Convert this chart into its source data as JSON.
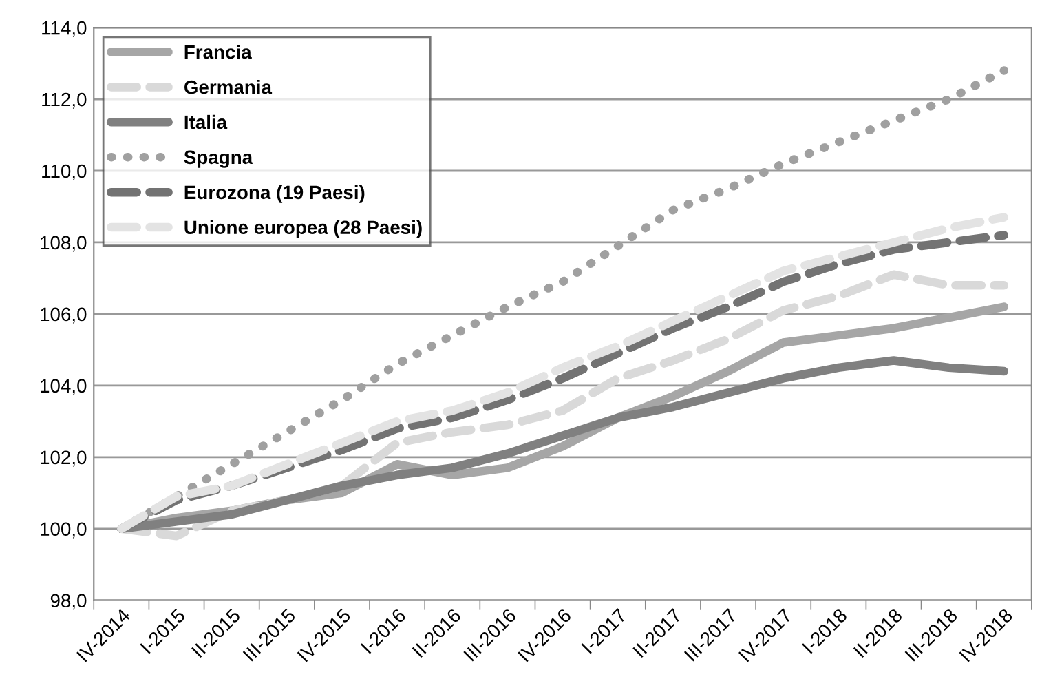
{
  "chart_data": {
    "type": "line",
    "categories": [
      "IV-2014",
      "I-2015",
      "II-2015",
      "III-2015",
      "IV-2015",
      "I-2016",
      "II-2016",
      "III-2016",
      "IV-2016",
      "I-2017",
      "II-2017",
      "III-2017",
      "IV-2017",
      "I-2018",
      "II-2018",
      "III-2018",
      "IV-2018"
    ],
    "series": [
      {
        "name": "Francia",
        "color": "#a6a6a6",
        "line_style": "solid",
        "values": [
          100,
          100.3,
          100.5,
          100.8,
          101.0,
          101.8,
          101.5,
          101.7,
          102.3,
          103.1,
          103.7,
          104.4,
          105.2,
          105.4,
          105.6,
          105.9,
          106.2
        ]
      },
      {
        "name": "Germania",
        "color": "#d9d9d9",
        "line_style": "dashed",
        "values": [
          100,
          99.8,
          100.5,
          100.8,
          101.2,
          102.4,
          102.7,
          102.9,
          103.3,
          104.2,
          104.7,
          105.3,
          106.1,
          106.5,
          107.1,
          106.8,
          106.8
        ]
      },
      {
        "name": "Italia",
        "color": "#808080",
        "line_style": "solid",
        "values": [
          100,
          100.2,
          100.4,
          100.8,
          101.2,
          101.5,
          101.7,
          102.1,
          102.6,
          103.1,
          103.4,
          103.8,
          104.2,
          104.5,
          104.7,
          104.5,
          104.4
        ]
      },
      {
        "name": "Spagna",
        "color": "#a0a0a0",
        "line_style": "dotted",
        "values": [
          100,
          100.9,
          101.8,
          102.7,
          103.6,
          104.6,
          105.4,
          106.2,
          106.9,
          107.9,
          108.9,
          109.5,
          110.2,
          110.8,
          111.4,
          112.0,
          112.8
        ]
      },
      {
        "name": "Eurozona (19 Paesi)",
        "color": "#737373",
        "line_style": "dashed",
        "values": [
          100,
          100.8,
          101.2,
          101.7,
          102.2,
          102.8,
          103.1,
          103.6,
          104.2,
          104.9,
          105.6,
          106.2,
          106.9,
          107.4,
          107.8,
          108.0,
          108.2
        ]
      },
      {
        "name": "Unione europea (28 Paesi)",
        "color": "#e3e3e3",
        "line_style": "dashed",
        "values": [
          100,
          100.9,
          101.2,
          101.8,
          102.4,
          103.0,
          103.3,
          103.8,
          104.5,
          105.1,
          105.8,
          106.5,
          107.2,
          107.6,
          108.0,
          108.4,
          108.7
        ]
      }
    ],
    "ylim": [
      98,
      114
    ],
    "yticks": [
      {
        "value": 98,
        "label": "98,0"
      },
      {
        "value": 100,
        "label": "100,0"
      },
      {
        "value": 102,
        "label": "102,0"
      },
      {
        "value": 104,
        "label": "104,0"
      },
      {
        "value": 106,
        "label": "106,0"
      },
      {
        "value": 108,
        "label": "108,0"
      },
      {
        "value": 110,
        "label": "110,0"
      },
      {
        "value": 112,
        "label": "112,0"
      },
      {
        "value": 114,
        "label": "114,0"
      }
    ],
    "grid": "y",
    "legend": "top left"
  }
}
